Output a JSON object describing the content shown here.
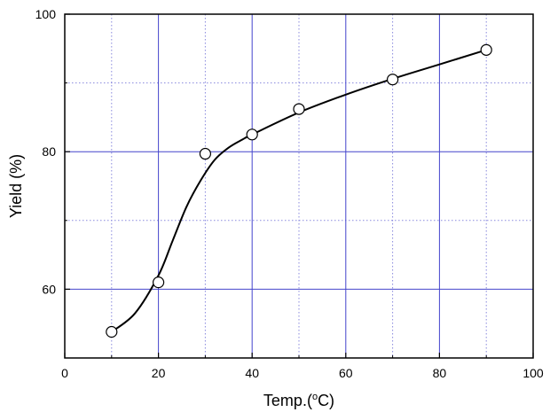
{
  "chart_data": {
    "type": "scatter",
    "title": "",
    "xlabel": "Temp.(°C)",
    "ylabel": "Yield (%)",
    "xlim": [
      0,
      100
    ],
    "ylim": [
      50,
      100
    ],
    "x_major_ticks": [
      0,
      20,
      40,
      60,
      80,
      100
    ],
    "x_minor_ticks": [
      10,
      30,
      50,
      70,
      90
    ],
    "y_major_ticks": [
      60,
      80,
      100
    ],
    "y_minor_ticks": [
      70,
      90
    ],
    "grid": true,
    "series": [
      {
        "marker": "open-circle",
        "x": [
          10,
          20,
          30,
          40,
          50,
          70,
          90
        ],
        "y": [
          53.8,
          61.0,
          79.7,
          82.5,
          86.2,
          90.5,
          94.8
        ]
      }
    ],
    "fit_curve": {
      "style": "smooth-line",
      "color": "#000000",
      "x": [
        10,
        15,
        20,
        23,
        26,
        29,
        32,
        35,
        38,
        40,
        50,
        60,
        70,
        80,
        90
      ],
      "y": [
        53.8,
        56.5,
        62.0,
        67.0,
        72.0,
        75.8,
        78.8,
        80.6,
        81.8,
        82.5,
        85.7,
        88.3,
        90.6,
        92.7,
        94.8
      ]
    },
    "colors": {
      "major_grid": "#4444cc",
      "minor_grid": "#8888dd",
      "axis": "#000000",
      "marker_fill": "#ffffff",
      "marker_stroke": "#000000"
    }
  }
}
